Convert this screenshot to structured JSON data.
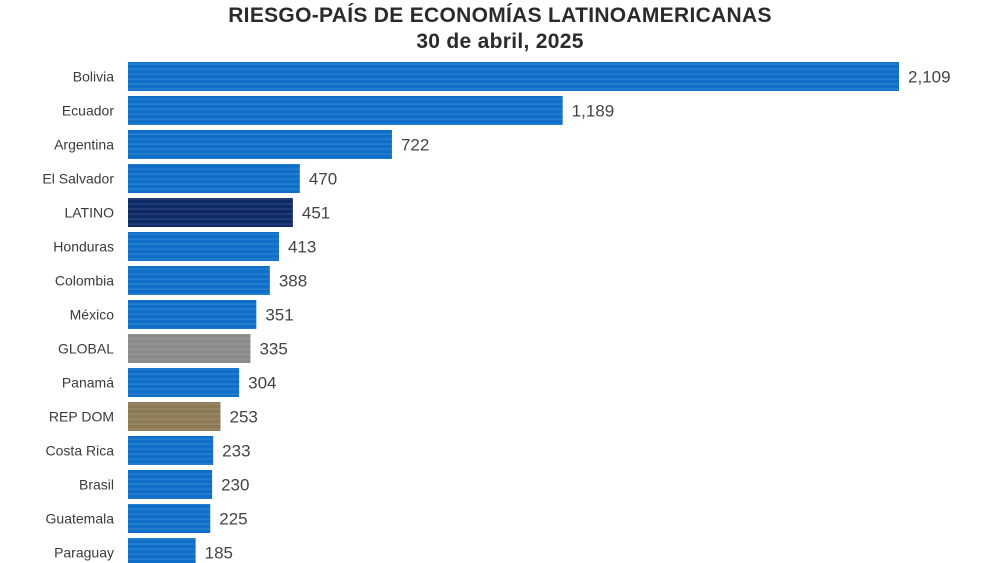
{
  "chart_data": {
    "type": "bar",
    "orientation": "horizontal",
    "title": "RIESGO-PAÍS DE ECONOMÍAS LATINOAMERICANAS",
    "subtitle": "30 de abril, 2025",
    "categories": [
      "Bolivia",
      "Ecuador",
      "Argentina",
      "El Salvador",
      "LATINO",
      "Honduras",
      "Colombia",
      "México",
      "GLOBAL",
      "Panamá",
      "REP DOM",
      "Costa Rica",
      "Brasil",
      "Guatemala",
      "Paraguay"
    ],
    "values": [
      2109,
      1189,
      722,
      470,
      451,
      413,
      388,
      351,
      335,
      304,
      253,
      233,
      230,
      225,
      185
    ],
    "value_labels": [
      "2,109",
      "1,189",
      "722",
      "470",
      "451",
      "413",
      "388",
      "351",
      "335",
      "304",
      "253",
      "233",
      "230",
      "225",
      "185"
    ],
    "colors": [
      "#0f6fc8",
      "#0f6fc8",
      "#0f6fc8",
      "#0f6fc8",
      "#0d2a66",
      "#0f6fc8",
      "#0f6fc8",
      "#0f6fc8",
      "#8a8a8a",
      "#0f6fc8",
      "#8c7a55",
      "#0f6fc8",
      "#0f6fc8",
      "#0f6fc8",
      "#0f6fc8"
    ],
    "xlim": [
      0,
      2109
    ],
    "grid": false,
    "legend": "none"
  }
}
